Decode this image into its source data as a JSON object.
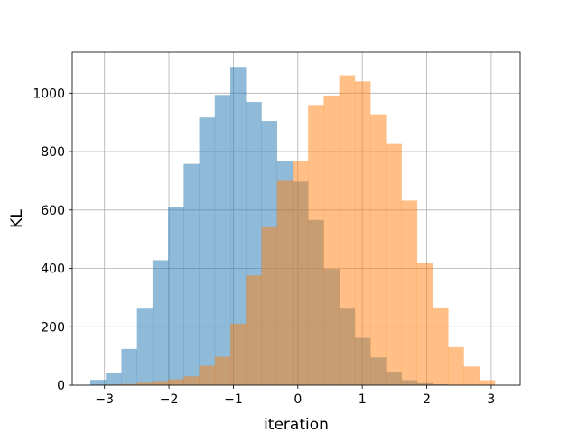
{
  "chart_data": {
    "type": "bar",
    "subtype": "histogram",
    "title": "",
    "xlabel": "iteration",
    "ylabel": "KL",
    "xlim": [
      -3.5,
      3.45
    ],
    "ylim": [
      0,
      1140
    ],
    "xticks": [
      -3,
      -2,
      -1,
      0,
      1,
      2,
      3
    ],
    "yticks": [
      0,
      200,
      400,
      600,
      800,
      1000
    ],
    "grid": true,
    "alpha": 0.5,
    "series": [
      {
        "color": "#1f77b4",
        "bin_start": -3.22,
        "bin_width": 0.2414,
        "counts": [
          18,
          42,
          124,
          265,
          428,
          610,
          758,
          917,
          994,
          1090,
          970,
          905,
          768,
          697,
          566,
          398,
          265,
          162,
          95,
          46,
          17,
          7,
          3
        ]
      },
      {
        "color": "#ff7f0e",
        "bin_start": -3.22,
        "bin_width": 0.2414,
        "counts": [
          0,
          2,
          4,
          8,
          14,
          20,
          30,
          66,
          97,
          210,
          376,
          541,
          700,
          768,
          960,
          992,
          1061,
          1040,
          928,
          826,
          632,
          418,
          266,
          130,
          64,
          17
        ]
      }
    ]
  }
}
